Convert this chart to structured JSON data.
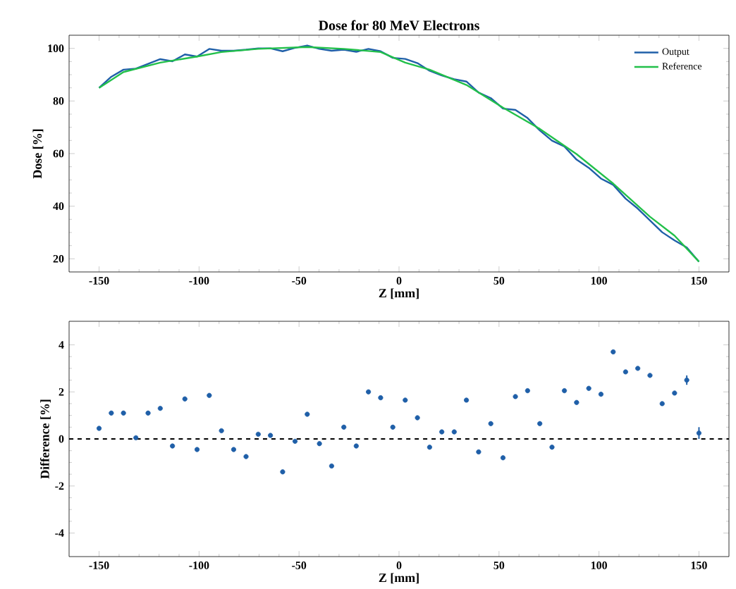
{
  "chart_data": [
    {
      "type": "line",
      "title": "Dose for 80 MeV Electrons",
      "xlabel": "Z [mm]",
      "ylabel": "Dose [%]",
      "xlim": [
        -165,
        165
      ],
      "ylim": [
        15,
        105
      ],
      "xticks": [
        -150,
        -100,
        -50,
        0,
        50,
        100,
        150
      ],
      "yticks": [
        20,
        40,
        60,
        80,
        100
      ],
      "legend": "top right",
      "marker": "none",
      "line_style": "solid",
      "grid": false,
      "series": [
        {
          "name": "Output",
          "color": "#1f5fa8",
          "x": [
            -150.0,
            -143.9,
            -137.8,
            -131.6,
            -125.5,
            -119.4,
            -113.3,
            -107.1,
            -101.0,
            -94.9,
            -88.8,
            -82.7,
            -76.5,
            -70.4,
            -64.3,
            -58.2,
            -52.0,
            -45.9,
            -39.8,
            -33.7,
            -27.6,
            -21.4,
            -15.3,
            -9.2,
            -3.1,
            3.1,
            9.2,
            15.3,
            21.4,
            27.6,
            33.7,
            39.8,
            45.9,
            52.0,
            58.2,
            64.3,
            70.4,
            76.5,
            82.7,
            88.8,
            94.9,
            101.0,
            107.1,
            113.3,
            119.4,
            125.5,
            131.6,
            137.8,
            143.9,
            150.0
          ],
          "values": [
            85.0,
            89.2,
            91.9,
            92.3,
            94.1,
            95.9,
            95.1,
            97.7,
            96.9,
            99.8,
            99.1,
            99.1,
            99.5,
            100.0,
            100.0,
            98.9,
            100.2,
            101.1,
            99.8,
            99.1,
            99.5,
            98.7,
            99.8,
            98.9,
            96.4,
            96.0,
            94.4,
            91.5,
            89.7,
            88.3,
            87.4,
            83.2,
            81.1,
            77.1,
            76.6,
            73.5,
            68.8,
            64.9,
            62.7,
            57.7,
            54.6,
            50.5,
            48.1,
            42.9,
            39.1,
            34.6,
            30.1,
            27.0,
            24.3,
            18.9
          ]
        },
        {
          "name": "Reference",
          "color": "#22c04a",
          "x": [
            -150.0,
            -137.8,
            -119.4,
            -101.0,
            -88.8,
            -70.4,
            -45.9,
            -27.6,
            -9.2,
            3.1,
            15.3,
            33.7,
            52.0,
            70.4,
            88.8,
            107.1,
            125.5,
            137.8,
            150.0
          ],
          "values": [
            85.0,
            91.0,
            94.6,
            96.9,
            98.6,
            99.8,
            100.5,
            99.8,
            98.6,
            94.6,
            91.9,
            86.1,
            77.5,
            69.4,
            59.8,
            48.6,
            36.0,
            28.8,
            18.9
          ]
        }
      ]
    },
    {
      "type": "scatter",
      "xlabel": "Z [mm]",
      "ylabel": "Difference [%]",
      "xlim": [
        -165,
        165
      ],
      "ylim": [
        -5,
        5
      ],
      "xticks": [
        -150,
        -100,
        -50,
        0,
        50,
        100,
        150
      ],
      "yticks": [
        -4,
        -2,
        0,
        2,
        4
      ],
      "marker": "circle",
      "grid": false,
      "ref_lines": [
        {
          "axis": "y",
          "value": 0,
          "color": "#000000",
          "line_style": "dashed"
        }
      ],
      "series": [
        {
          "color": "#1f5fa8",
          "x": [
            -150.0,
            -143.9,
            -137.8,
            -131.6,
            -125.5,
            -119.4,
            -113.3,
            -107.1,
            -101.0,
            -94.9,
            -88.8,
            -82.7,
            -76.5,
            -70.4,
            -64.3,
            -58.2,
            -52.0,
            -45.9,
            -39.8,
            -33.7,
            -27.6,
            -21.4,
            -15.3,
            -9.2,
            -3.1,
            3.1,
            9.2,
            15.3,
            21.4,
            27.6,
            33.7,
            39.8,
            45.9,
            52.0,
            58.2,
            64.3,
            70.4,
            76.5,
            82.7,
            88.8,
            94.9,
            101.0,
            107.1,
            113.3,
            119.4,
            125.5,
            131.6,
            137.8,
            143.9,
            150.0
          ],
          "values": [
            0.45,
            1.1,
            1.1,
            0.05,
            1.1,
            1.3,
            -0.3,
            1.7,
            -0.45,
            1.85,
            0.35,
            -0.45,
            -0.75,
            0.2,
            0.15,
            -1.4,
            -0.1,
            1.05,
            -0.2,
            -1.15,
            0.5,
            -0.3,
            2.0,
            1.75,
            0.5,
            1.65,
            0.9,
            -0.35,
            0.3,
            0.3,
            1.65,
            -0.55,
            0.65,
            -0.8,
            1.8,
            2.05,
            0.65,
            -0.35,
            2.05,
            1.55,
            2.15,
            1.9,
            3.7,
            2.85,
            3.0,
            2.7,
            1.5,
            1.95,
            2.5,
            0.25
          ],
          "errors": [
            null,
            null,
            null,
            null,
            null,
            null,
            null,
            null,
            null,
            null,
            null,
            null,
            null,
            null,
            null,
            null,
            null,
            null,
            null,
            null,
            null,
            null,
            null,
            null,
            null,
            null,
            null,
            null,
            null,
            null,
            null,
            null,
            null,
            null,
            null,
            null,
            null,
            null,
            null,
            null,
            null,
            null,
            null,
            null,
            null,
            null,
            null,
            null,
            0.2,
            0.25
          ]
        }
      ]
    }
  ]
}
